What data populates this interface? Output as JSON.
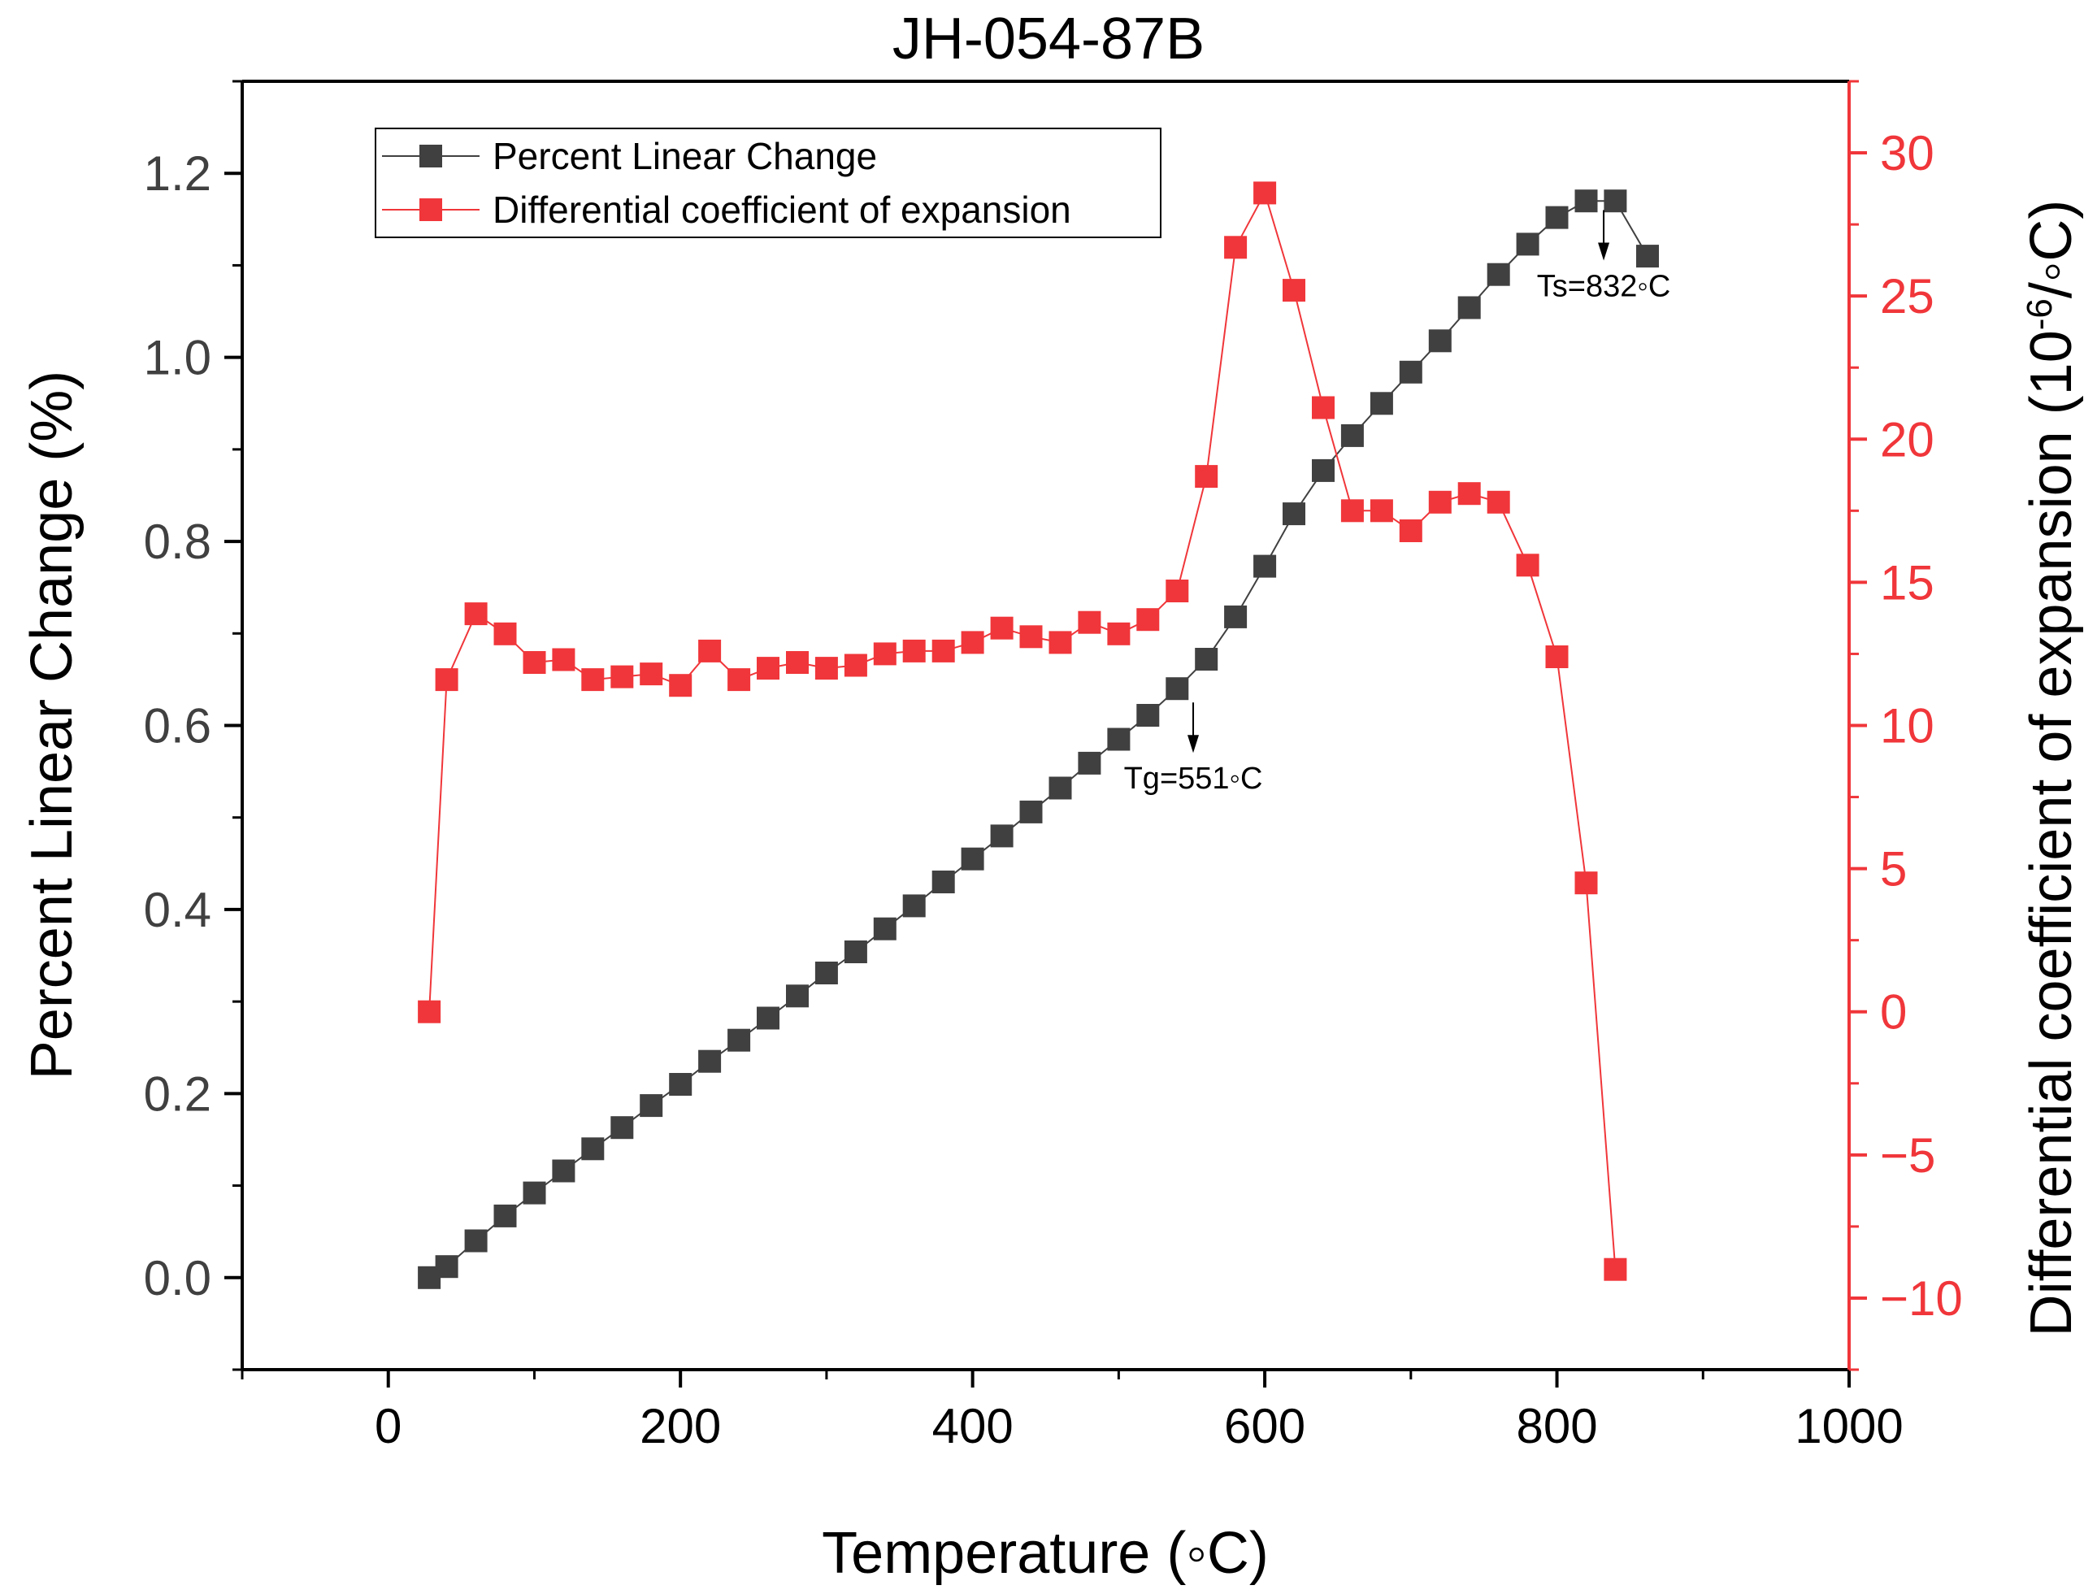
{
  "chart_data": {
    "type": "line",
    "title": "JH-054-87B",
    "xlabel": "Temperature (◦C)",
    "ylabel": "Percent Linear Change (%)",
    "y2label_main": "Differential coefficient of expansion (10",
    "y2label_sup": "-6",
    "y2label_end": "/◦C)",
    "xlim": [
      -100,
      1000
    ],
    "ylim": [
      -0.1,
      1.3
    ],
    "y2lim": [
      -12.5,
      32.5
    ],
    "x_ticks": [
      0,
      200,
      400,
      600,
      800,
      1000
    ],
    "x_tick_labels": [
      "0",
      "200",
      "400",
      "600",
      "800",
      "1000"
    ],
    "y_ticks": [
      0.0,
      0.2,
      0.4,
      0.6,
      0.8,
      1.0,
      1.2
    ],
    "y_tick_labels": [
      "0.0",
      "0.2",
      "0.4",
      "0.6",
      "0.8",
      "1.0",
      "1.2"
    ],
    "y2_ticks": [
      -10,
      -5,
      0,
      5,
      10,
      15,
      20,
      25,
      30
    ],
    "y2_tick_labels": [
      "−10",
      "−5",
      "0",
      "5",
      "10",
      "15",
      "20",
      "25",
      "30"
    ],
    "series": [
      {
        "name": "Percent Linear Change",
        "axis": "left",
        "color": "#404040",
        "x": [
          28,
          40,
          60,
          80,
          100,
          120,
          140,
          160,
          180,
          200,
          220,
          240,
          260,
          280,
          300,
          320,
          340,
          360,
          380,
          400,
          420,
          440,
          460,
          480,
          500,
          520,
          540,
          560,
          580,
          600,
          620,
          640,
          660,
          680,
          700,
          720,
          740,
          760,
          780,
          800,
          820,
          840,
          862
        ],
        "values": [
          0.0,
          0.012,
          0.04,
          0.067,
          0.092,
          0.116,
          0.14,
          0.163,
          0.187,
          0.21,
          0.235,
          0.258,
          0.282,
          0.306,
          0.331,
          0.354,
          0.379,
          0.404,
          0.43,
          0.455,
          0.48,
          0.506,
          0.532,
          0.559,
          0.585,
          0.611,
          0.64,
          0.672,
          0.718,
          0.773,
          0.83,
          0.877,
          0.915,
          0.95,
          0.984,
          1.018,
          1.054,
          1.09,
          1.123,
          1.152,
          1.17,
          1.17,
          1.11
        ]
      },
      {
        "name": "Differential coefficient of expansion",
        "axis": "right",
        "color": "#f0363a",
        "x": [
          28,
          40,
          60,
          80,
          100,
          120,
          140,
          160,
          180,
          200,
          220,
          240,
          260,
          280,
          300,
          320,
          340,
          360,
          380,
          400,
          420,
          440,
          460,
          480,
          500,
          520,
          540,
          560,
          580,
          600,
          620,
          640,
          660,
          680,
          700,
          720,
          740,
          760,
          780,
          800,
          820,
          840
        ],
        "values": [
          0.0,
          11.6,
          13.9,
          13.2,
          12.2,
          12.3,
          11.6,
          11.7,
          11.8,
          11.4,
          12.6,
          11.6,
          12.0,
          12.2,
          12.0,
          12.1,
          12.5,
          12.6,
          12.6,
          12.9,
          13.4,
          13.1,
          12.9,
          13.6,
          13.2,
          13.7,
          14.7,
          18.7,
          26.7,
          28.6,
          25.2,
          21.1,
          17.5,
          17.5,
          16.8,
          17.8,
          18.1,
          17.8,
          15.6,
          12.4,
          4.5,
          -9.0
        ]
      }
    ],
    "annotations": [
      {
        "label": "Tg=551◦C",
        "x": 551,
        "axis": "left",
        "y": 0.625
      },
      {
        "label": "Ts=832◦C",
        "x": 832,
        "axis": "left",
        "y": 1.16
      }
    ],
    "legend_placement": "top-left"
  }
}
